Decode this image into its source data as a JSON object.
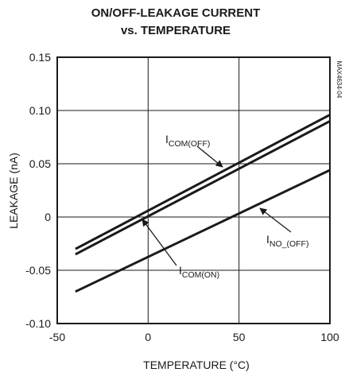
{
  "chart_data": {
    "type": "line",
    "title_lines": [
      "ON/OFF-LEAKAGE CURRENT",
      "vs. TEMPERATURE"
    ],
    "xlabel": "TEMPERATURE (°C)",
    "ylabel": "LEAKAGE (nA)",
    "part_number": "MAX4634-04",
    "xlim": [
      -50,
      100
    ],
    "ylim": [
      -0.1,
      0.15
    ],
    "x_ticks": [
      -50,
      0,
      50,
      100
    ],
    "x_tick_labels": [
      "-50",
      "0",
      "50",
      "100"
    ],
    "y_ticks": [
      0.15,
      0.1,
      0.05,
      0,
      -0.05,
      -0.1
    ],
    "y_tick_labels": [
      "0.15",
      "0.10",
      "0.05",
      "0",
      "-0.05",
      "-0.10"
    ],
    "grid": true,
    "series": [
      {
        "name": "ICOM(OFF)",
        "label_main": "I",
        "label_sub": "COM(OFF)",
        "x": [
          -40,
          100
        ],
        "y": [
          -0.03,
          0.096
        ]
      },
      {
        "name": "ICOM(ON)",
        "label_main": "I",
        "label_sub": "COM(ON)",
        "x": [
          -40,
          100
        ],
        "y": [
          -0.035,
          0.09
        ]
      },
      {
        "name": "INO_(OFF)",
        "label_main": "I",
        "label_sub": "NO_(OFF)",
        "x": [
          -40,
          100
        ],
        "y": [
          -0.07,
          0.044
        ]
      }
    ],
    "line_color": "#1a1a1a"
  }
}
